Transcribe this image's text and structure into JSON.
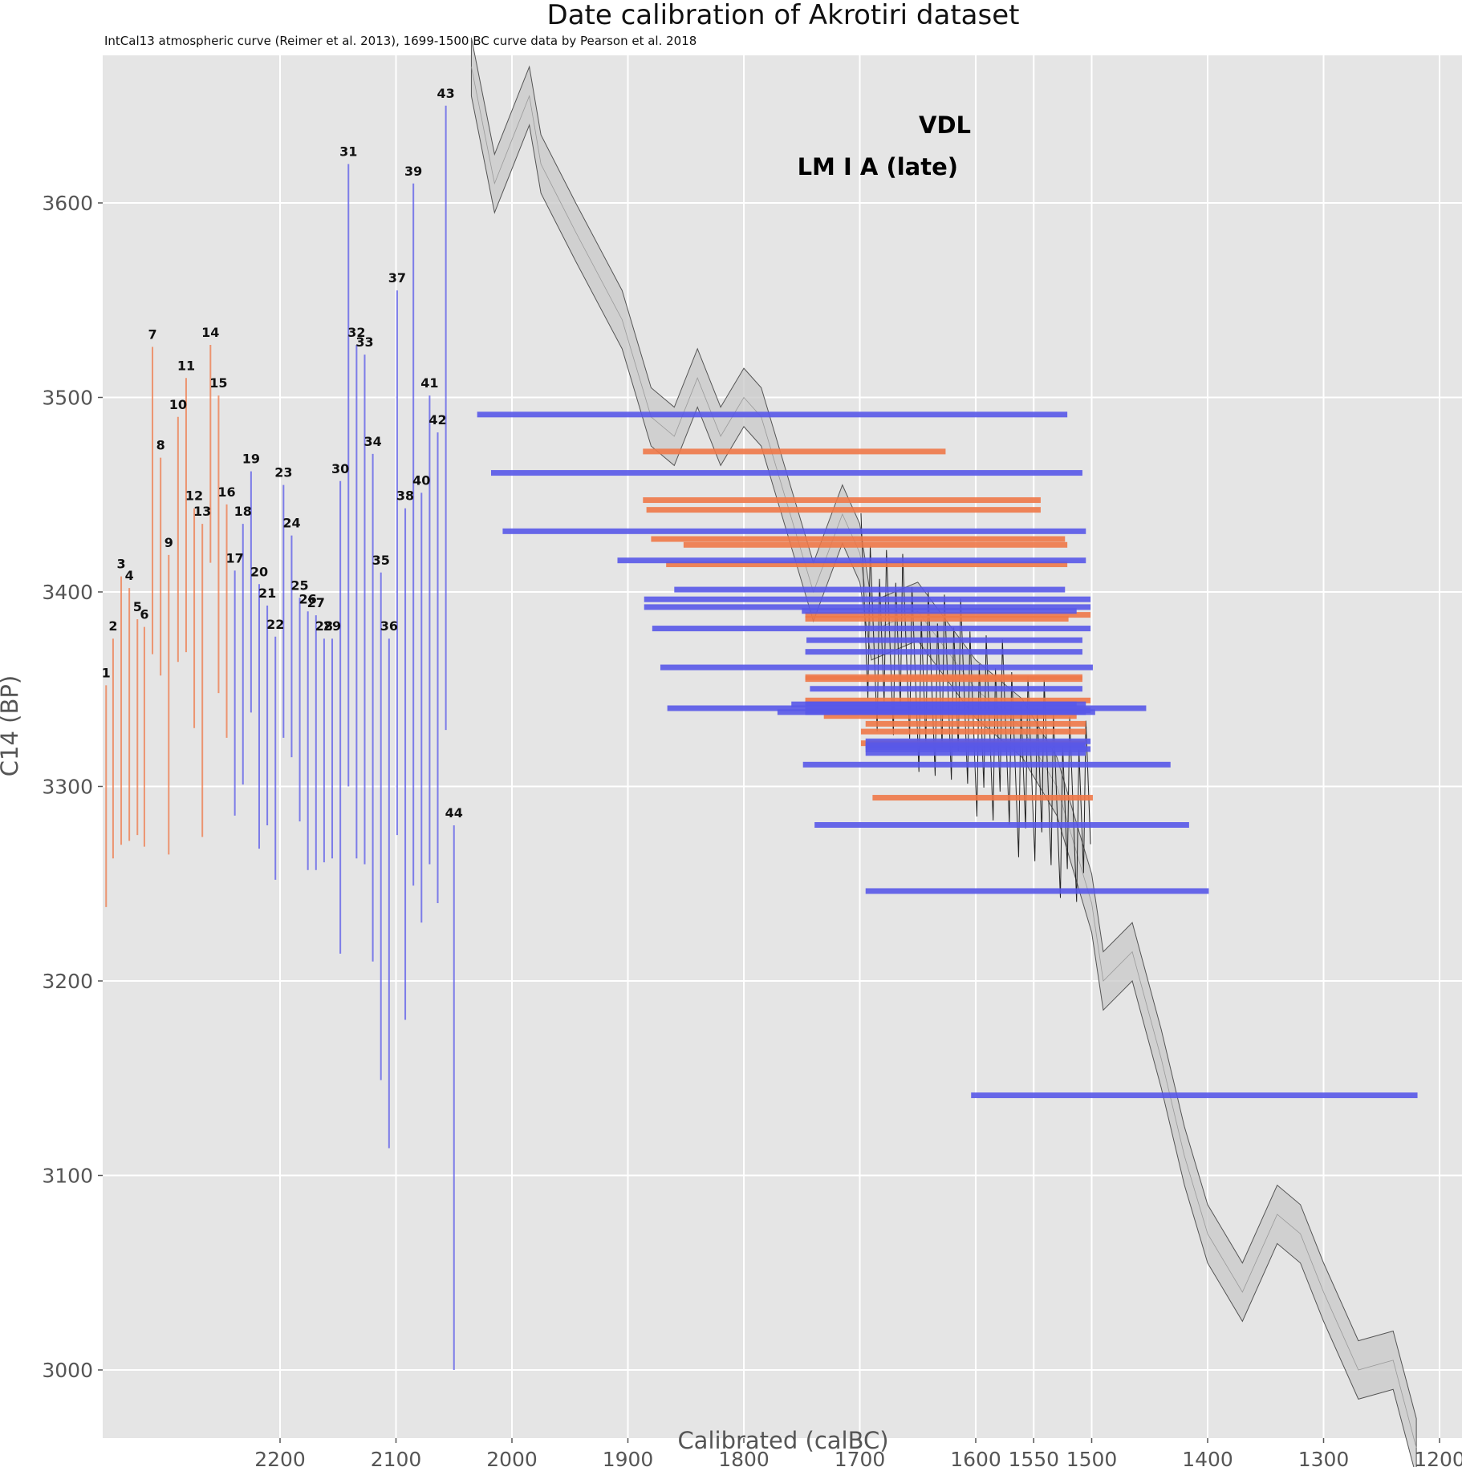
{
  "chart_data": {
    "type": "scatter",
    "title": "Date calibration of Akrotiri dataset",
    "subtitle": "IntCal13 atmospheric curve (Reimer et al. 2013), 1699-1500 BC curve data by Pearson et al. 2018",
    "xlabel": "Calibrated (calBC)",
    "ylabel": "C14 (BP)",
    "xlim": [
      2353,
      1181
    ],
    "ylim": [
      2965,
      3676
    ],
    "x_ticks": [
      2200,
      2100,
      2000,
      1900,
      1800,
      1700,
      1600,
      1550,
      1500,
      1400,
      1300,
      1200
    ],
    "y_ticks": [
      3000,
      3100,
      3200,
      3300,
      3400,
      3500,
      3600
    ],
    "grid": true,
    "legend": [
      {
        "name": "VDL",
        "color": "#1f1fd6",
        "position": "top-right"
      },
      {
        "name": "LM I A (late)",
        "color": "#ee5a1e",
        "position": "top-right"
      }
    ],
    "group_colors": {
      "LM I A (late)": "#ee7848",
      "VDL": "#5858e8"
    },
    "calibration_curve": {
      "name": "IntCal13",
      "band_halfwidth_bp": 15,
      "points": [
        [
          2035,
          3670
        ],
        [
          2015,
          3610
        ],
        [
          1985,
          3655
        ],
        [
          1975,
          3620
        ],
        [
          1945,
          3585
        ],
        [
          1905,
          3540
        ],
        [
          1880,
          3490
        ],
        [
          1860,
          3480
        ],
        [
          1840,
          3510
        ],
        [
          1820,
          3480
        ],
        [
          1800,
          3500
        ],
        [
          1785,
          3490
        ],
        [
          1760,
          3440
        ],
        [
          1740,
          3400
        ],
        [
          1715,
          3440
        ],
        [
          1700,
          3420
        ],
        [
          1690,
          3380
        ],
        [
          1650,
          3390
        ],
        [
          1600,
          3350
        ],
        [
          1560,
          3330
        ],
        [
          1530,
          3300
        ],
        [
          1500,
          3240
        ],
        [
          1490,
          3200
        ],
        [
          1465,
          3215
        ],
        [
          1440,
          3160
        ],
        [
          1420,
          3110
        ],
        [
          1400,
          3070
        ],
        [
          1370,
          3040
        ],
        [
          1340,
          3080
        ],
        [
          1320,
          3070
        ],
        [
          1300,
          3040
        ],
        [
          1270,
          3000
        ],
        [
          1240,
          3005
        ],
        [
          1220,
          2960
        ]
      ]
    },
    "samples": [
      {
        "id": "1",
        "group": "LM I A (late)",
        "bar_x": 2350,
        "bp_range": [
          3238,
          3352
        ],
        "density_bp": 3294,
        "cal_range": [
          1689,
          1499
        ]
      },
      {
        "id": "2",
        "group": "LM I A (late)",
        "bar_x": 2344,
        "bp_range": [
          3263,
          3376
        ],
        "density_bp": 3322,
        "cal_range": [
          1699,
          1505
        ]
      },
      {
        "id": "3",
        "group": "LM I A (late)",
        "bar_x": 2337,
        "bp_range": [
          3270,
          3408
        ],
        "density_bp": 3355,
        "cal_range": [
          1747,
          1508
        ]
      },
      {
        "id": "4",
        "group": "LM I A (late)",
        "bar_x": 2330,
        "bp_range": [
          3272,
          3402
        ],
        "density_bp": 3336,
        "cal_range": [
          1731,
          1513
        ]
      },
      {
        "id": "5",
        "group": "LM I A (late)",
        "bar_x": 2323,
        "bp_range": [
          3275,
          3386
        ],
        "density_bp": 3332,
        "cal_range": [
          1695,
          1505
        ]
      },
      {
        "id": "6",
        "group": "LM I A (late)",
        "bar_x": 2317,
        "bp_range": [
          3269,
          3382
        ],
        "density_bp": 3328,
        "cal_range": [
          1699,
          1505
        ]
      },
      {
        "id": "7",
        "group": "LM I A (late)",
        "bar_x": 2310,
        "bp_range": [
          3368,
          3526
        ],
        "density_bp": 3447,
        "cal_range": [
          1887,
          1544
        ]
      },
      {
        "id": "8",
        "group": "LM I A (late)",
        "bar_x": 2303,
        "bp_range": [
          3357,
          3469
        ],
        "density_bp": 3414,
        "cal_range": [
          1867,
          1521
        ]
      },
      {
        "id": "9",
        "group": "LM I A (late)",
        "bar_x": 2296,
        "bp_range": [
          3265,
          3419
        ],
        "density_bp": 3344,
        "cal_range": [
          1747,
          1501
        ]
      },
      {
        "id": "10",
        "group": "LM I A (late)",
        "bar_x": 2288,
        "bp_range": [
          3364,
          3490
        ],
        "density_bp": 3427,
        "cal_range": [
          1880,
          1523
        ]
      },
      {
        "id": "11",
        "group": "LM I A (late)",
        "bar_x": 2281,
        "bp_range": [
          3369,
          3510
        ],
        "density_bp": 3442,
        "cal_range": [
          1884,
          1544
        ]
      },
      {
        "id": "12",
        "group": "LM I A (late)",
        "bar_x": 2274,
        "bp_range": [
          3330,
          3443
        ],
        "density_bp": 3388,
        "cal_range": [
          1747,
          1501
        ]
      },
      {
        "id": "13",
        "group": "LM I A (late)",
        "bar_x": 2267,
        "bp_range": [
          3274,
          3435
        ],
        "density_bp": 3356,
        "cal_range": [
          1747,
          1508
        ]
      },
      {
        "id": "14",
        "group": "LM I A (late)",
        "bar_x": 2260,
        "bp_range": [
          3415,
          3527
        ],
        "density_bp": 3472,
        "cal_range": [
          1887,
          1626
        ]
      },
      {
        "id": "15",
        "group": "LM I A (late)",
        "bar_x": 2253,
        "bp_range": [
          3348,
          3501
        ],
        "density_bp": 3424,
        "cal_range": [
          1852,
          1521
        ]
      },
      {
        "id": "16",
        "group": "LM I A (late)",
        "bar_x": 2246,
        "bp_range": [
          3325,
          3445
        ],
        "density_bp": 3386,
        "cal_range": [
          1747,
          1520
        ]
      },
      {
        "id": "17",
        "group": "VDL",
        "bar_x": 2239,
        "bp_range": [
          3285,
          3411
        ],
        "density_bp": 3350,
        "cal_range": [
          1743,
          1508
        ]
      },
      {
        "id": "18",
        "group": "VDL",
        "bar_x": 2232,
        "bp_range": [
          3301,
          3435
        ],
        "density_bp": 3369,
        "cal_range": [
          1747,
          1508
        ]
      },
      {
        "id": "19",
        "group": "VDL",
        "bar_x": 2225,
        "bp_range": [
          3338,
          3462
        ],
        "density_bp": 3401,
        "cal_range": [
          1860,
          1523
        ]
      },
      {
        "id": "20",
        "group": "VDL",
        "bar_x": 2218,
        "bp_range": [
          3268,
          3404
        ],
        "density_bp": 3339,
        "cal_range": [
          1747,
          1501
        ]
      },
      {
        "id": "21",
        "group": "VDL",
        "bar_x": 2211,
        "bp_range": [
          3280,
          3393
        ],
        "density_bp": 3338,
        "cal_range": [
          1747,
          1497
        ]
      },
      {
        "id": "22",
        "group": "VDL",
        "bar_x": 2204,
        "bp_range": [
          3252,
          3377
        ],
        "density_bp": 3317,
        "cal_range": [
          1695,
          1505
        ]
      },
      {
        "id": "23",
        "group": "VDL",
        "bar_x": 2197,
        "bp_range": [
          3325,
          3455
        ],
        "density_bp": 3390,
        "cal_range": [
          1750,
          1513
        ]
      },
      {
        "id": "24",
        "group": "VDL",
        "bar_x": 2190,
        "bp_range": [
          3315,
          3429
        ],
        "density_bp": 3375,
        "cal_range": [
          1746,
          1508
        ]
      },
      {
        "id": "25",
        "group": "VDL",
        "bar_x": 2183,
        "bp_range": [
          3282,
          3397
        ],
        "density_bp": 3342,
        "cal_range": [
          1747,
          1513
        ]
      },
      {
        "id": "26",
        "group": "VDL",
        "bar_x": 2176,
        "bp_range": [
          3257,
          3390
        ],
        "density_bp": 3323,
        "cal_range": [
          1695,
          1501
        ]
      },
      {
        "id": "27",
        "group": "VDL",
        "bar_x": 2169,
        "bp_range": [
          3257,
          3388
        ],
        "density_bp": 3321,
        "cal_range": [
          1695,
          1505
        ]
      },
      {
        "id": "28",
        "group": "VDL",
        "bar_x": 2162,
        "bp_range": [
          3261,
          3376
        ],
        "density_bp": 3319,
        "cal_range": [
          1695,
          1501
        ]
      },
      {
        "id": "29",
        "group": "VDL",
        "bar_x": 2155,
        "bp_range": [
          3263,
          3376
        ],
        "density_bp": 3320,
        "cal_range": [
          1695,
          1505
        ]
      },
      {
        "id": "30",
        "group": "VDL",
        "bar_x": 2148,
        "bp_range": [
          3214,
          3457
        ],
        "density_bp": 3338,
        "cal_range": [
          1771,
          1505
        ]
      },
      {
        "id": "31",
        "group": "VDL",
        "bar_x": 2141,
        "bp_range": [
          3300,
          3620
        ],
        "density_bp": 3461,
        "cal_range": [
          2018,
          1508
        ]
      },
      {
        "id": "32",
        "group": "VDL",
        "bar_x": 2134,
        "bp_range": [
          3263,
          3527
        ],
        "density_bp": 3396,
        "cal_range": [
          1886,
          1501
        ]
      },
      {
        "id": "33",
        "group": "VDL",
        "bar_x": 2127,
        "bp_range": [
          3260,
          3522
        ],
        "density_bp": 3392,
        "cal_range": [
          1886,
          1501
        ]
      },
      {
        "id": "34",
        "group": "VDL",
        "bar_x": 2120,
        "bp_range": [
          3210,
          3471
        ],
        "density_bp": 3340,
        "cal_range": [
          1866,
          1453
        ]
      },
      {
        "id": "35",
        "group": "VDL",
        "bar_x": 2113,
        "bp_range": [
          3149,
          3410
        ],
        "density_bp": 3280,
        "cal_range": [
          1739,
          1416
        ]
      },
      {
        "id": "36",
        "group": "VDL",
        "bar_x": 2106,
        "bp_range": [
          3114,
          3376
        ],
        "density_bp": 3246,
        "cal_range": [
          1695,
          1399
        ]
      },
      {
        "id": "37",
        "group": "VDL",
        "bar_x": 2099,
        "bp_range": [
          3275,
          3555
        ],
        "density_bp": 3416,
        "cal_range": [
          1909,
          1505
        ]
      },
      {
        "id": "38",
        "group": "VDL",
        "bar_x": 2092,
        "bp_range": [
          3180,
          3443
        ],
        "density_bp": 3311,
        "cal_range": [
          1749,
          1432
        ]
      },
      {
        "id": "39",
        "group": "VDL",
        "bar_x": 2085,
        "bp_range": [
          3249,
          3610
        ],
        "density_bp": 3431,
        "cal_range": [
          2008,
          1505
        ]
      },
      {
        "id": "40",
        "group": "VDL",
        "bar_x": 2078,
        "bp_range": [
          3230,
          3451
        ],
        "density_bp": 3342,
        "cal_range": [
          1759,
          1505
        ]
      },
      {
        "id": "41",
        "group": "VDL",
        "bar_x": 2071,
        "bp_range": [
          3260,
          3501
        ],
        "density_bp": 3381,
        "cal_range": [
          1879,
          1501
        ]
      },
      {
        "id": "42",
        "group": "VDL",
        "bar_x": 2064,
        "bp_range": [
          3240,
          3482
        ],
        "density_bp": 3361,
        "cal_range": [
          1872,
          1499
        ]
      },
      {
        "id": "43",
        "group": "VDL",
        "bar_x": 2057,
        "bp_range": [
          3329,
          3650
        ],
        "density_bp": 3491,
        "cal_range": [
          2030,
          1521
        ]
      },
      {
        "id": "44",
        "group": "VDL",
        "bar_x": 2050,
        "bp_range": [
          3000,
          3280
        ],
        "density_bp": 3141,
        "cal_range": [
          1604,
          1219
        ]
      }
    ]
  }
}
